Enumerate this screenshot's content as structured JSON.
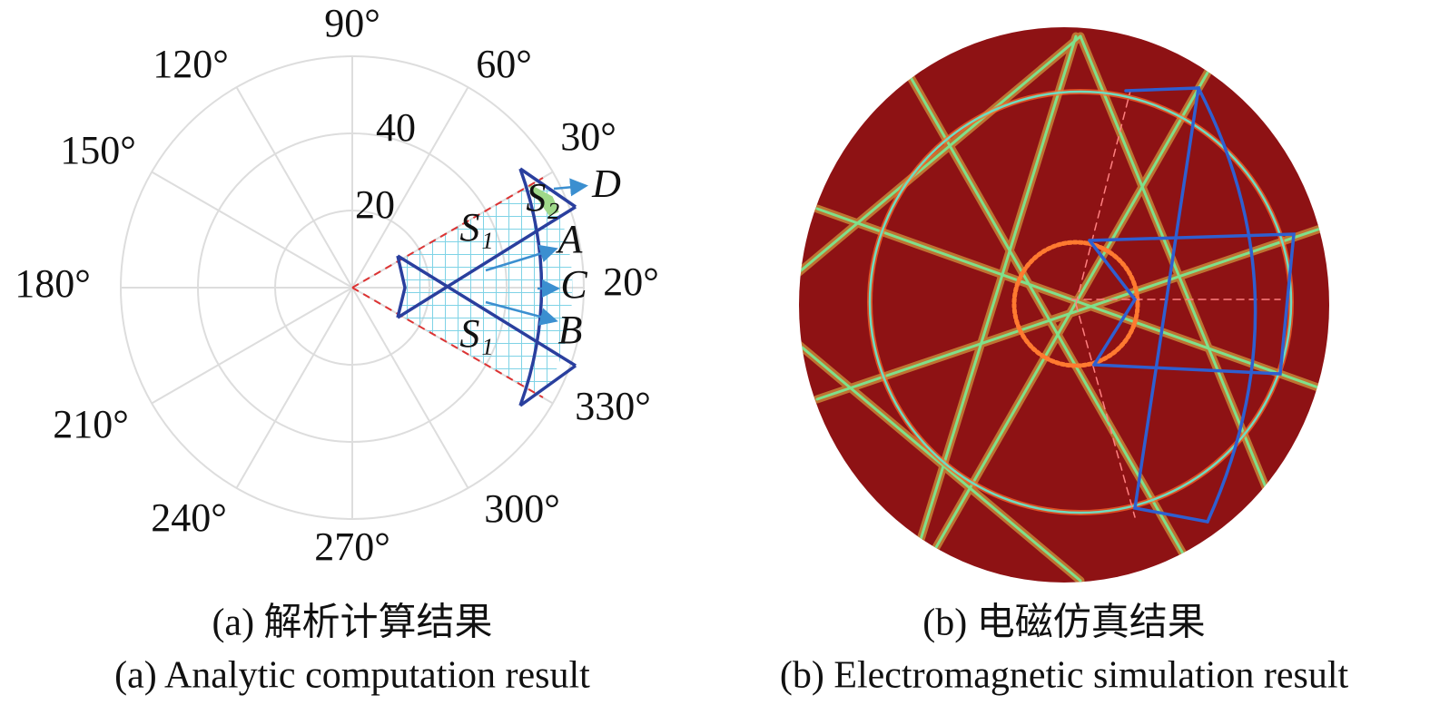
{
  "panel_a": {
    "angle_labels": [
      "90°",
      "60°",
      "30°",
      "120°",
      "150°",
      "180°",
      "210°",
      "240°",
      "270°",
      "300°",
      "330°"
    ],
    "radial_labels": [
      "20",
      "40"
    ],
    "region_labels": [
      "S₁",
      "S₁",
      "S₂"
    ],
    "point_labels": [
      "A",
      "B",
      "C",
      "D"
    ],
    "angle_annotation": "20°",
    "caption_zh": "(a) 解析计算结果",
    "caption_en": "(a) Analytic computation result"
  },
  "panel_b": {
    "caption_zh": "(b) 电磁仿真结果",
    "caption_en": "(b) Electromagnetic simulation result"
  }
}
